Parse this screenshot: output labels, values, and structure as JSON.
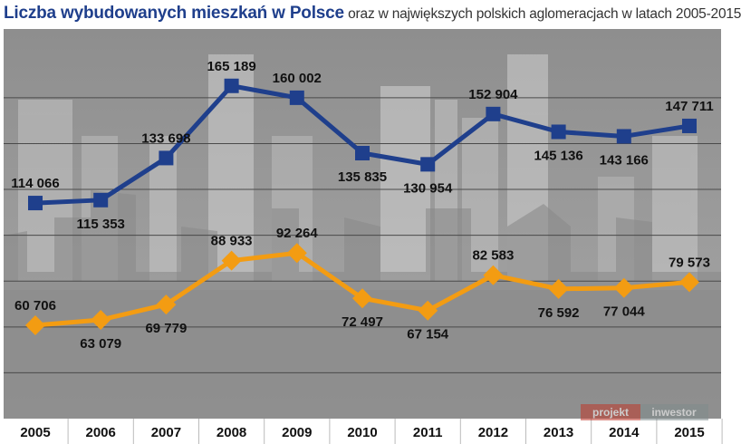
{
  "title_bold": "Liczba wybudowanych mieszkań w Polsce",
  "title_rest": "oraz w największych polskich aglomeracjach w latach 2005-2015",
  "watermark": {
    "left": "projekt",
    "right": "inwestor"
  },
  "colors": {
    "series_1": "#1f3f8c",
    "series_2": "#f39c12",
    "background": "#9a9a9a"
  },
  "chart_data": {
    "type": "line",
    "x": [
      "2005",
      "2006",
      "2007",
      "2008",
      "2009",
      "2010",
      "2011",
      "2012",
      "2013",
      "2014",
      "2015"
    ],
    "ylim": [
      20000,
      190000
    ],
    "grid": true,
    "series": [
      {
        "values": [
          114066,
          115353,
          133698,
          165189,
          160002,
          135835,
          130954,
          152904,
          145136,
          143166,
          147711
        ],
        "labels": [
          "114 066",
          "115 353",
          "133 698",
          "165 189",
          "160 002",
          "135 835",
          "130 954",
          "152 904",
          "145 136",
          "143 166",
          "147 711"
        ],
        "marker": "square",
        "color": "#1f3f8c"
      },
      {
        "values": [
          60706,
          63079,
          69779,
          88933,
          92264,
          72497,
          67154,
          82583,
          76592,
          77044,
          79573
        ],
        "labels": [
          "60 706",
          "63 079",
          "69 779",
          "88 933",
          "92 264",
          "72 497",
          "67 154",
          "82 583",
          "76 592",
          "77 044",
          "79 573"
        ],
        "marker": "diamond",
        "color": "#f39c12"
      }
    ]
  }
}
